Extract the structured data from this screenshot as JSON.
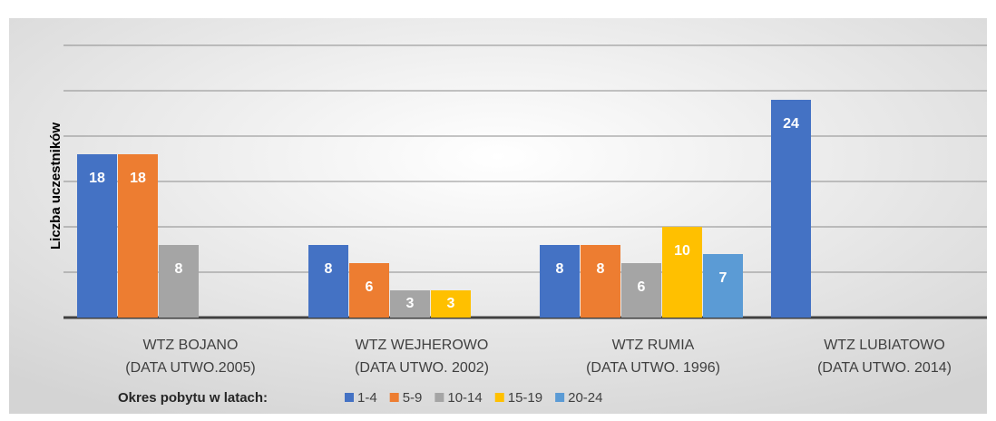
{
  "chart_data": {
    "type": "bar",
    "y_label": "Liczba uczestników",
    "legend_title": "Okres pobytu w latach:",
    "categories": [
      [
        "WTZ BOJANO",
        "(DATA UTWO.2005)"
      ],
      [
        "WTZ WEJHEROWO",
        "(DATA UTWO. 2002)"
      ],
      [
        "WTZ RUMIA",
        "(DATA UTWO. 1996)"
      ],
      [
        "WTZ LUBIATOWO",
        "(DATA UTWO. 2014)"
      ]
    ],
    "series": [
      {
        "name": "1-4",
        "color": "#4472c4",
        "values": [
          18,
          8,
          8,
          24
        ]
      },
      {
        "name": "5-9",
        "color": "#ed7d31",
        "values": [
          18,
          6,
          8,
          null
        ]
      },
      {
        "name": "10-14",
        "color": "#a5a5a5",
        "values": [
          8,
          3,
          6,
          null
        ]
      },
      {
        "name": "15-19",
        "color": "#ffc000",
        "values": [
          null,
          3,
          10,
          null
        ]
      },
      {
        "name": "20-24",
        "color": "#5b9bd5",
        "values": [
          null,
          null,
          7,
          null
        ]
      }
    ],
    "ylim": [
      0,
      30
    ],
    "yticks": [
      0,
      5,
      10,
      15,
      20,
      25,
      30
    ],
    "grid": true,
    "legend": "bottom"
  }
}
